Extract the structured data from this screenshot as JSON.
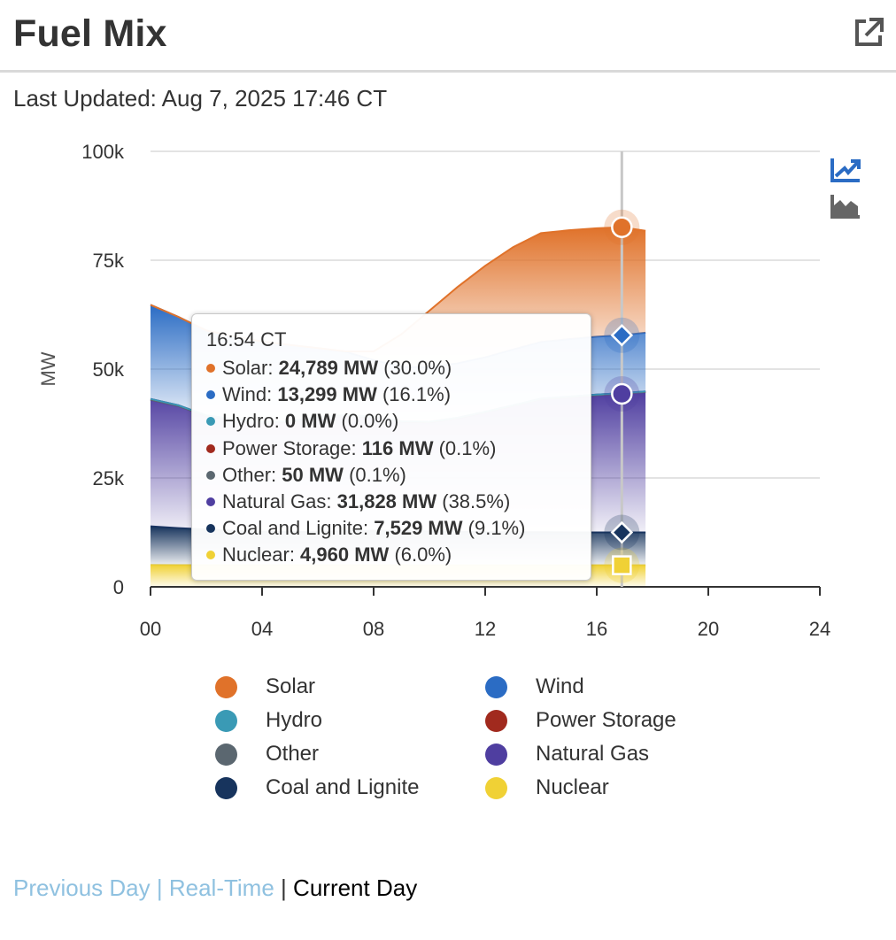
{
  "header": {
    "title": "Fuel Mix",
    "external_link_icon": "external-link-icon"
  },
  "updated": {
    "text": "Last Updated: Aug 7, 2025 17:46 CT"
  },
  "chart_data": {
    "type": "area",
    "stacked": true,
    "title": "",
    "xlabel": "",
    "ylabel": "MW",
    "xlim": [
      0,
      24
    ],
    "ylim": [
      0,
      100000
    ],
    "x_ticks": [
      "00",
      "04",
      "08",
      "12",
      "16",
      "20",
      "24"
    ],
    "y_ticks": [
      "0",
      "25k",
      "50k",
      "75k",
      "100k"
    ],
    "grid": true,
    "legend_placement": "bottom",
    "x_hours": [
      0,
      1,
      2,
      3,
      4,
      5,
      6,
      7,
      8,
      9,
      10,
      11,
      12,
      13,
      14,
      15,
      16,
      16.9,
      17.75
    ],
    "series": [
      {
        "name": "Nuclear",
        "color": "#f0d135",
        "values": [
          5000,
          4990,
          4990,
          4980,
          4980,
          4980,
          4970,
          4970,
          4970,
          4970,
          4960,
          4960,
          4960,
          4960,
          4960,
          4960,
          4960,
          4960,
          4960
        ]
      },
      {
        "name": "Coal and Lignite",
        "color": "#17345d",
        "values": [
          8900,
          8500,
          8200,
          7900,
          7700,
          7600,
          7700,
          7800,
          7900,
          7900,
          7800,
          7700,
          7600,
          7600,
          7600,
          7550,
          7530,
          7529,
          7540
        ]
      },
      {
        "name": "Natural Gas",
        "color": "#4f3ea0",
        "values": [
          29000,
          28000,
          26000,
          25500,
          25000,
          25300,
          26000,
          26500,
          26000,
          25000,
          25000,
          26000,
          27500,
          29000,
          30500,
          31000,
          31500,
          31828,
          32200
        ]
      },
      {
        "name": "Other",
        "color": "#5b6770",
        "values": [
          50,
          50,
          50,
          50,
          50,
          50,
          50,
          50,
          50,
          50,
          50,
          50,
          50,
          50,
          50,
          50,
          50,
          50,
          50
        ]
      },
      {
        "name": "Power Storage",
        "color": "#a12a1e",
        "values": [
          200,
          150,
          120,
          100,
          100,
          100,
          120,
          150,
          150,
          100,
          100,
          100,
          100,
          100,
          110,
          116,
          116,
          116,
          120
        ]
      },
      {
        "name": "Hydro",
        "color": "#3a9ab5",
        "values": [
          0,
          0,
          0,
          0,
          0,
          0,
          0,
          0,
          0,
          0,
          0,
          0,
          0,
          0,
          0,
          0,
          0,
          0,
          0
        ]
      },
      {
        "name": "Wind",
        "color": "#2b6cc4",
        "values": [
          21600,
          20300,
          19500,
          19000,
          18500,
          17500,
          16000,
          14500,
          13000,
          12500,
          12500,
          12500,
          12500,
          12800,
          13000,
          13200,
          13299,
          13299,
          13500
        ]
      },
      {
        "name": "Solar",
        "color": "#e0722a",
        "values": [
          0,
          0,
          0,
          0,
          0,
          0,
          0,
          100,
          2000,
          7500,
          13000,
          17500,
          21000,
          23500,
          25000,
          25000,
          24900,
          24789,
          23400
        ]
      }
    ],
    "tooltip": {
      "time": "16:54 CT",
      "rows": [
        {
          "name": "Solar",
          "value": "24,789 MW",
          "pct": "(30.0%)"
        },
        {
          "name": "Wind",
          "value": "13,299 MW",
          "pct": "(16.1%)"
        },
        {
          "name": "Hydro",
          "value": "0 MW",
          "pct": "(0.0%)"
        },
        {
          "name": "Power Storage",
          "value": "116 MW",
          "pct": "(0.1%)"
        },
        {
          "name": "Other",
          "value": "50 MW",
          "pct": "(0.1%)"
        },
        {
          "name": "Natural Gas",
          "value": "31,828 MW",
          "pct": "(38.5%)"
        },
        {
          "name": "Coal and Lignite",
          "value": "7,529 MW",
          "pct": "(9.1%)"
        },
        {
          "name": "Nuclear",
          "value": "4,960 MW",
          "pct": "(6.0%)"
        }
      ]
    },
    "crosshair_hour": 16.9
  },
  "legend": {
    "items": [
      {
        "label": "Solar",
        "color": "#e0722a"
      },
      {
        "label": "Wind",
        "color": "#2b6cc4"
      },
      {
        "label": "Hydro",
        "color": "#3a9ab5"
      },
      {
        "label": "Power Storage",
        "color": "#a12a1e"
      },
      {
        "label": "Other",
        "color": "#5b6770"
      },
      {
        "label": "Natural Gas",
        "color": "#4f3ea0"
      },
      {
        "label": "Coal and Lignite",
        "color": "#17345d"
      },
      {
        "label": "Nuclear",
        "color": "#f0d135"
      }
    ]
  },
  "nav": {
    "previous_day": "Previous Day",
    "real_time": "Real-Time",
    "current_day": "Current Day",
    "separator": "|"
  },
  "view_toggles": {
    "line_icon": "line-chart-icon",
    "area_icon": "area-chart-icon",
    "active_color": "#2b6cc4",
    "inactive_color": "#666666"
  }
}
